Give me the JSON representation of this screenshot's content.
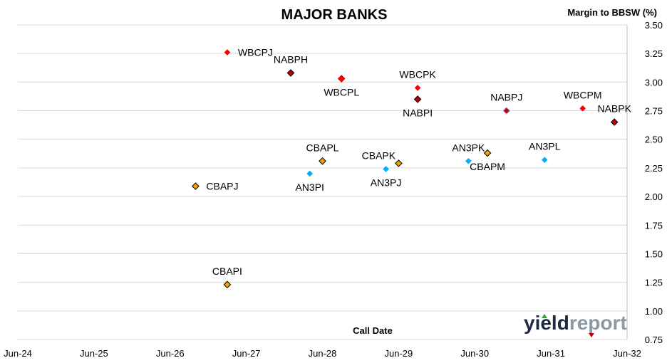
{
  "chart_data": {
    "type": "scatter",
    "title": "MAJOR BANKS",
    "xlabel": "Call Date",
    "ylabel": "Margin to BBSW (%)",
    "x_ticks": [
      "Jun-24",
      "Jun-25",
      "Jun-26",
      "Jun-27",
      "Jun-28",
      "Jun-29",
      "Jun-30",
      "Jun-31",
      "Jun-32"
    ],
    "ylim": [
      0.75,
      3.5
    ],
    "y_ticks": [
      "3.50",
      "3.25",
      "3.00",
      "2.75",
      "2.50",
      "2.25",
      "2.00",
      "1.75",
      "1.50",
      "1.25",
      "1.00",
      "0.75"
    ],
    "grid": true,
    "points": [
      {
        "label": "WBCPJ",
        "x": "2027-03",
        "y": 3.26,
        "color": "#ff0000",
        "border": "#ff0000",
        "size": "small",
        "label_pos": "right"
      },
      {
        "label": "NABPH",
        "x": "2028-01",
        "y": 3.08,
        "color": "#c00000",
        "border": "#000000",
        "size": "medium",
        "label_pos": "above"
      },
      {
        "label": "WBCPL",
        "x": "2028-09",
        "y": 3.03,
        "color": "#ff0000",
        "border": "#c00000",
        "size": "medium",
        "label_pos": "below"
      },
      {
        "label": "WBCPK",
        "x": "2029-09",
        "y": 2.95,
        "color": "#ff0000",
        "border": "#ff0000",
        "size": "small",
        "label_pos": "above"
      },
      {
        "label": "NABPI",
        "x": "2029-09",
        "y": 2.85,
        "color": "#c00000",
        "border": "#000000",
        "size": "medium",
        "label_pos": "below"
      },
      {
        "label": "NABPJ",
        "x": "2030-11",
        "y": 2.75,
        "color": "#c00000",
        "border": "#8ea9db",
        "size": "medium",
        "label_pos": "above"
      },
      {
        "label": "WBCPM",
        "x": "2031-11",
        "y": 2.77,
        "color": "#ff0000",
        "border": "#ff0000",
        "size": "small",
        "label_pos": "above"
      },
      {
        "label": "NABPK",
        "x": "2032-04",
        "y": 2.65,
        "color": "#c00000",
        "border": "#000000",
        "size": "medium",
        "label_pos": "above"
      },
      {
        "label": "CBAPJ",
        "x": "2026-10",
        "y": 2.09,
        "color": "#f4a300",
        "border": "#000000",
        "size": "medium",
        "label_pos": "right"
      },
      {
        "label": "CBAPL",
        "x": "2028-06",
        "y": 2.31,
        "color": "#f4a300",
        "border": "#000000",
        "size": "medium",
        "label_pos": "above"
      },
      {
        "label": "AN3PI",
        "x": "2028-04",
        "y": 2.2,
        "color": "#00b0f0",
        "border": "#00b0f0",
        "size": "small",
        "label_pos": "below"
      },
      {
        "label": "CBAPK",
        "x": "2029-06",
        "y": 2.29,
        "color": "#f4a300",
        "border": "#000000",
        "size": "medium",
        "label_pos": "above-left"
      },
      {
        "label": "AN3PJ",
        "x": "2029-04",
        "y": 2.24,
        "color": "#00b0f0",
        "border": "#00b0f0",
        "size": "small",
        "label_pos": "below"
      },
      {
        "label": "AN3PK",
        "x": "2030-05",
        "y": 2.31,
        "color": "#00b0f0",
        "border": "#00b0f0",
        "size": "small",
        "label_pos": "above"
      },
      {
        "label": "CBAPM",
        "x": "2030-08",
        "y": 2.38,
        "color": "#f4a300",
        "border": "#000000",
        "size": "medium",
        "label_pos": "below"
      },
      {
        "label": "AN3PL",
        "x": "2031-05",
        "y": 2.32,
        "color": "#00b0f0",
        "border": "#00b0f0",
        "size": "small",
        "label_pos": "above"
      },
      {
        "label": "CBAPI",
        "x": "2027-03",
        "y": 1.23,
        "color": "#f4a300",
        "border": "#000000",
        "size": "medium",
        "label_pos": "above"
      }
    ]
  },
  "logo": {
    "part1": "yield",
    "part2": "report",
    "color1": "#1f2a44",
    "color2": "#8c9aa6"
  }
}
